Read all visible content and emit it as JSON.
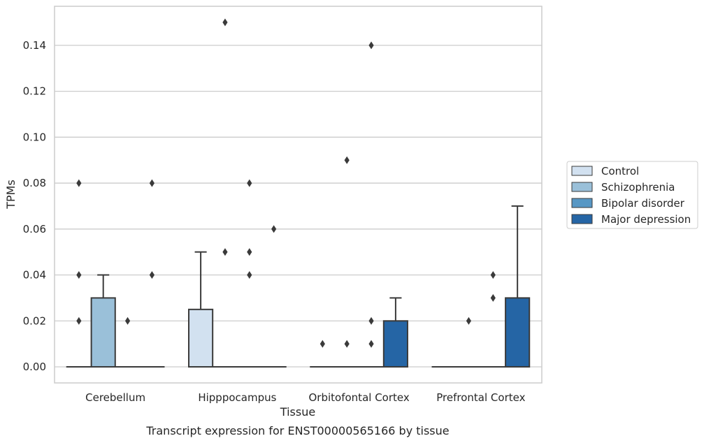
{
  "chart_data": {
    "type": "box",
    "title": "Transcript expression for ENST00000565166 by tissue",
    "xlabel": "Tissue",
    "ylabel": "TPMs",
    "ylim": [
      -0.007,
      0.157
    ],
    "yticks": [
      "0.00",
      "0.02",
      "0.04",
      "0.06",
      "0.08",
      "0.10",
      "0.12",
      "0.14"
    ],
    "grid": true,
    "legend_placement": "right",
    "categories": [
      "Cerebellum",
      "Hipppocampus",
      "Orbitofontal Cortex",
      "Prefrontal Cortex"
    ],
    "series": [
      {
        "name": "Control",
        "color": "#d2e1f0",
        "boxes": [
          {
            "q1": 0,
            "median": 0,
            "q3": 0,
            "whisker_low": 0,
            "whisker_high": 0,
            "outliers": [
              0.02,
              0.04,
              0.08
            ]
          },
          {
            "q1": 0,
            "median": 0,
            "q3": 0.025,
            "whisker_low": 0,
            "whisker_high": 0.05,
            "outliers": []
          },
          {
            "q1": 0,
            "median": 0,
            "q3": 0,
            "whisker_low": 0,
            "whisker_high": 0,
            "outliers": [
              0.01
            ]
          },
          {
            "q1": 0,
            "median": 0,
            "q3": 0,
            "whisker_low": 0,
            "whisker_high": 0,
            "outliers": []
          }
        ]
      },
      {
        "name": "Schizophrenia",
        "color": "#9ac0d9",
        "boxes": [
          {
            "q1": 0,
            "median": 0,
            "q3": 0.03,
            "whisker_low": 0,
            "whisker_high": 0.04,
            "outliers": []
          },
          {
            "q1": 0,
            "median": 0,
            "q3": 0,
            "whisker_low": 0,
            "whisker_high": 0,
            "outliers": [
              0.05,
              0.15
            ]
          },
          {
            "q1": 0,
            "median": 0,
            "q3": 0,
            "whisker_low": 0,
            "whisker_high": 0,
            "outliers": [
              0.01,
              0.09
            ]
          },
          {
            "q1": 0,
            "median": 0,
            "q3": 0,
            "whisker_low": 0,
            "whisker_high": 0,
            "outliers": [
              0.02
            ]
          }
        ]
      },
      {
        "name": "Bipolar disorder",
        "color": "#5797c4",
        "boxes": [
          {
            "q1": 0,
            "median": 0,
            "q3": 0,
            "whisker_low": 0,
            "whisker_high": 0,
            "outliers": [
              0.02
            ]
          },
          {
            "q1": 0,
            "median": 0,
            "q3": 0,
            "whisker_low": 0,
            "whisker_high": 0,
            "outliers": [
              0.04,
              0.05,
              0.08
            ]
          },
          {
            "q1": 0,
            "median": 0,
            "q3": 0,
            "whisker_low": 0,
            "whisker_high": 0,
            "outliers": [
              0.01,
              0.02,
              0.14
            ]
          },
          {
            "q1": 0,
            "median": 0,
            "q3": 0,
            "whisker_low": 0,
            "whisker_high": 0,
            "outliers": [
              0.03,
              0.04
            ]
          }
        ]
      },
      {
        "name": "Major depression",
        "color": "#2565a5",
        "boxes": [
          {
            "q1": 0,
            "median": 0,
            "q3": 0,
            "whisker_low": 0,
            "whisker_high": 0,
            "outliers": [
              0.04,
              0.08
            ]
          },
          {
            "q1": 0,
            "median": 0,
            "q3": 0,
            "whisker_low": 0,
            "whisker_high": 0,
            "outliers": [
              0.06
            ]
          },
          {
            "q1": 0,
            "median": 0,
            "q3": 0.02,
            "whisker_low": 0,
            "whisker_high": 0.03,
            "outliers": []
          },
          {
            "q1": 0,
            "median": 0,
            "q3": 0.03,
            "whisker_low": 0,
            "whisker_high": 0.07,
            "outliers": []
          }
        ]
      }
    ]
  }
}
